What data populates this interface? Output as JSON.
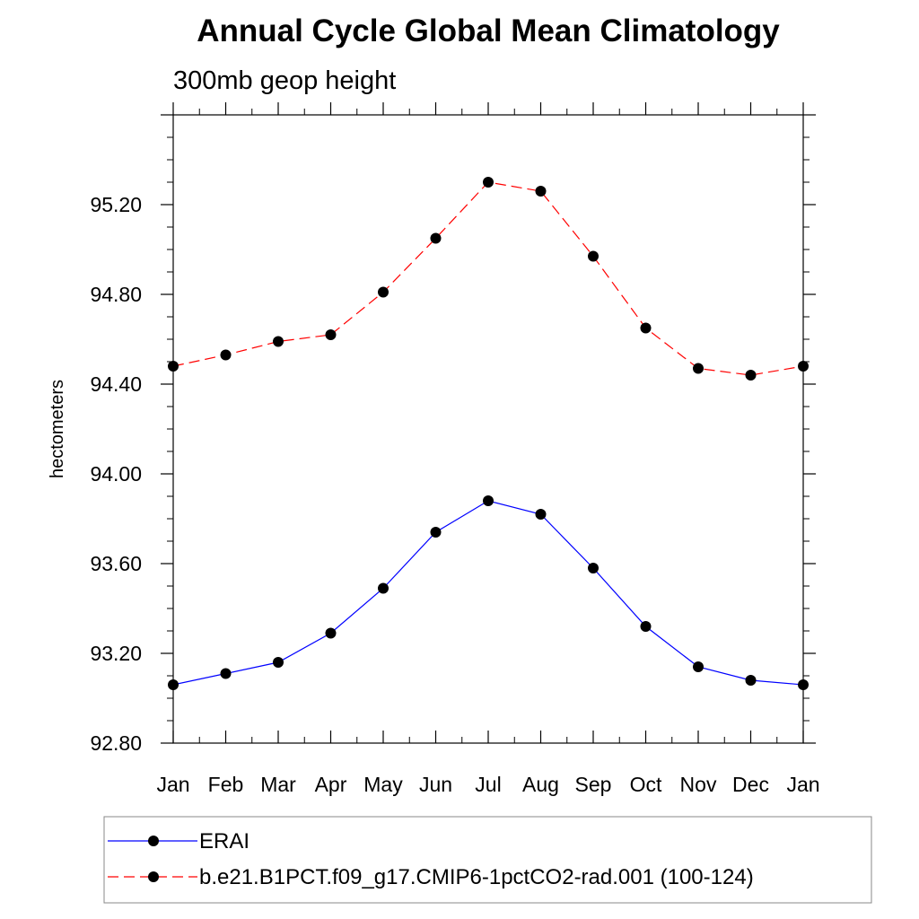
{
  "chart_data": {
    "type": "line",
    "title": "Annual Cycle Global Mean Climatology",
    "subtitle": "300mb geop height",
    "xlabel": "",
    "ylabel": "hectometers",
    "categories": [
      "Jan",
      "Feb",
      "Mar",
      "Apr",
      "May",
      "Jun",
      "Jul",
      "Aug",
      "Sep",
      "Oct",
      "Nov",
      "Dec",
      "Jan"
    ],
    "ylim": [
      92.8,
      95.6
    ],
    "yticks": [
      92.8,
      93.2,
      93.6,
      94.0,
      94.4,
      94.8,
      95.2
    ],
    "ytick_labels": [
      "92.80",
      "93.20",
      "93.60",
      "94.00",
      "94.40",
      "94.80",
      "95.20"
    ],
    "grid": false,
    "legend_position": "bottom",
    "series": [
      {
        "name": "ERAI",
        "color": "#0000ff",
        "dash": "solid",
        "marker": "circle",
        "values": [
          93.06,
          93.11,
          93.16,
          93.29,
          93.49,
          93.74,
          93.88,
          93.82,
          93.58,
          93.32,
          93.14,
          93.08,
          93.06
        ]
      },
      {
        "name": "b.e21.B1PCT.f09_g17.CMIP6-1pctCO2-rad.001 (100-124)",
        "color": "#ff0000",
        "dash": "dashed",
        "marker": "circle",
        "values": [
          94.48,
          94.53,
          94.59,
          94.62,
          94.81,
          95.05,
          95.3,
          95.26,
          94.97,
          94.65,
          94.47,
          94.44,
          94.48
        ]
      }
    ]
  }
}
